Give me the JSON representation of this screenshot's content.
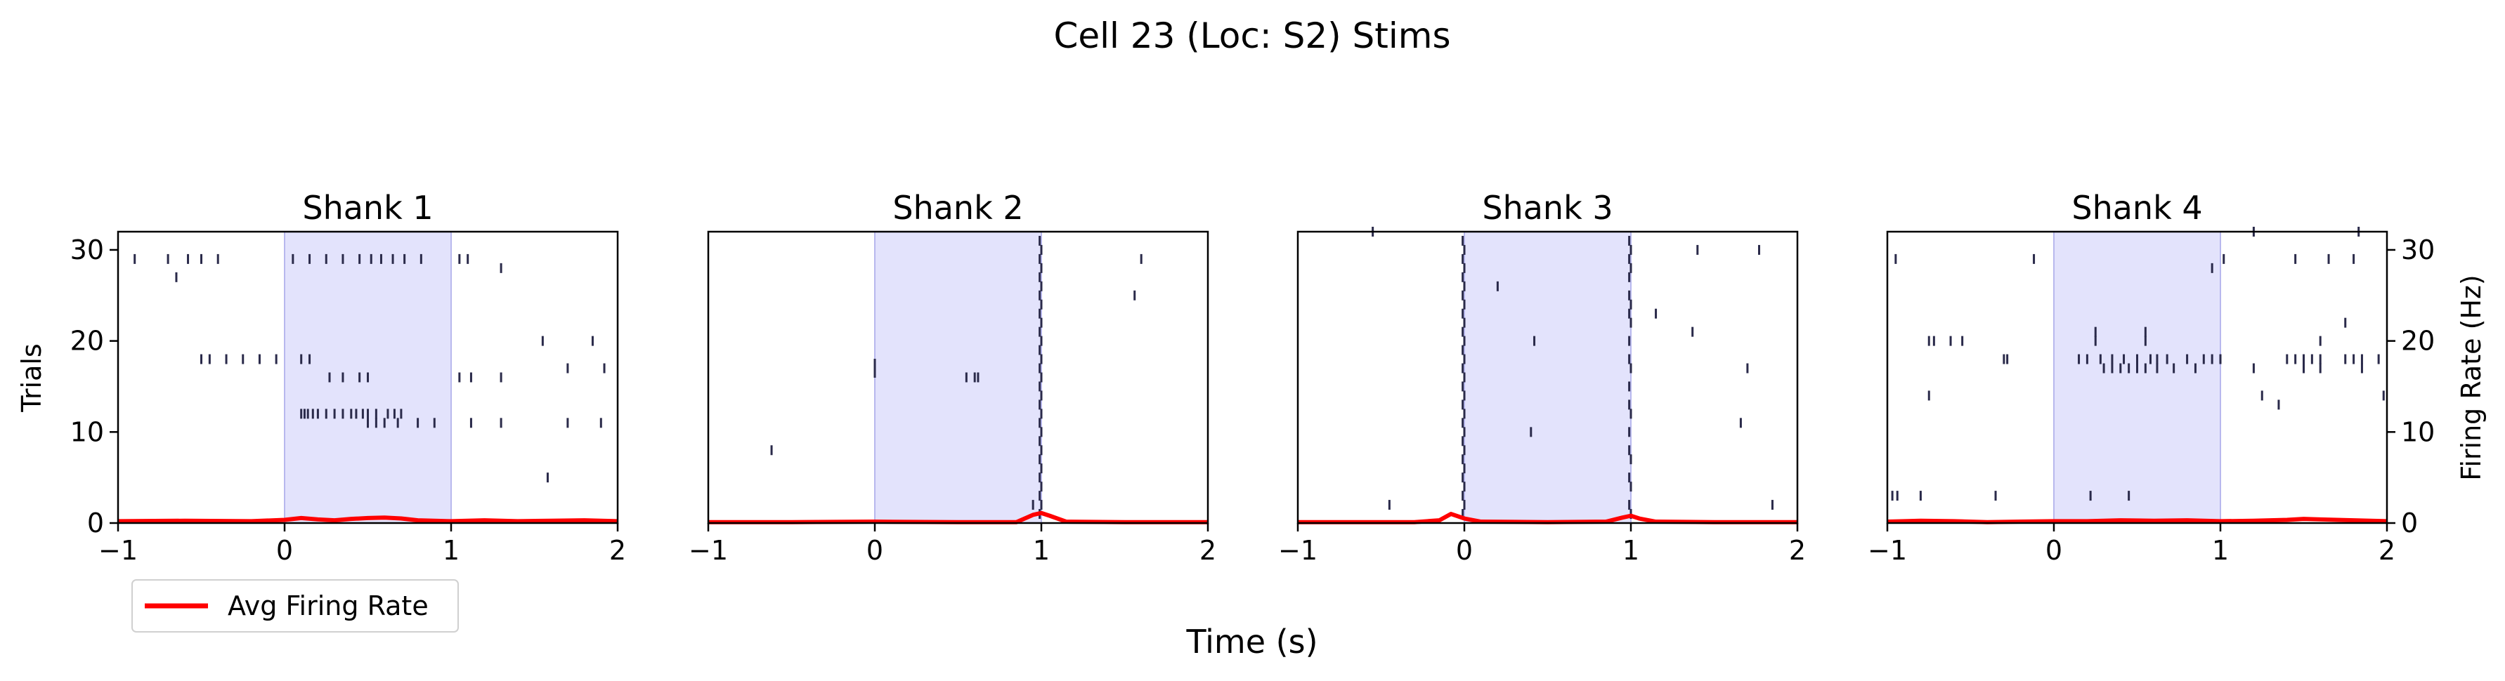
{
  "figure": {
    "title": "Cell 23 (Loc: S2) Stims",
    "xlabel": "Time (s)",
    "ylabel_left": "Trials",
    "ylabel_right": "Firing Rate (Hz)",
    "legend_label": "Avg Firing Rate"
  },
  "colors": {
    "spike": "#2a2a4a",
    "rate": "#ff0000",
    "stim": "#e3e3fc",
    "stim_edge": "#b8b8ee"
  },
  "chart_data": [
    {
      "type": "scatter",
      "title": "Shank 1",
      "xlim": [
        -1,
        2
      ],
      "ylim": [
        0,
        32
      ],
      "x_ticks": [
        "−1",
        "0",
        "1",
        "2"
      ],
      "y_ticks": [
        "0",
        "10",
        "20",
        "30"
      ],
      "stim_window": [
        0,
        1
      ],
      "spikes": [
        [
          -0.9,
          29
        ],
        [
          -0.7,
          29
        ],
        [
          -0.65,
          27
        ],
        [
          -0.58,
          29
        ],
        [
          -0.5,
          29
        ],
        [
          -0.4,
          29
        ],
        [
          0.05,
          29
        ],
        [
          0.15,
          29
        ],
        [
          0.25,
          29
        ],
        [
          0.35,
          29
        ],
        [
          0.45,
          29
        ],
        [
          0.52,
          29
        ],
        [
          0.58,
          29
        ],
        [
          0.65,
          29
        ],
        [
          0.72,
          29
        ],
        [
          0.82,
          29
        ],
        [
          1.05,
          29
        ],
        [
          1.1,
          29
        ],
        [
          1.3,
          28
        ],
        [
          -0.5,
          18
        ],
        [
          -0.45,
          18
        ],
        [
          -0.35,
          18
        ],
        [
          -0.25,
          18
        ],
        [
          -0.15,
          18
        ],
        [
          -0.05,
          18
        ],
        [
          0.1,
          18
        ],
        [
          0.15,
          18
        ],
        [
          0.27,
          16
        ],
        [
          0.35,
          16
        ],
        [
          0.45,
          16
        ],
        [
          0.5,
          16
        ],
        [
          1.05,
          16
        ],
        [
          1.12,
          16
        ],
        [
          1.3,
          16
        ],
        [
          0.1,
          12
        ],
        [
          0.12,
          12
        ],
        [
          0.14,
          12
        ],
        [
          0.17,
          12
        ],
        [
          0.2,
          12
        ],
        [
          0.25,
          12
        ],
        [
          0.3,
          12
        ],
        [
          0.35,
          12
        ],
        [
          0.4,
          12
        ],
        [
          0.43,
          12
        ],
        [
          0.47,
          12
        ],
        [
          0.5,
          12
        ],
        [
          0.55,
          12
        ],
        [
          0.62,
          12
        ],
        [
          0.66,
          12
        ],
        [
          0.7,
          12
        ],
        [
          0.5,
          11
        ],
        [
          0.55,
          11
        ],
        [
          0.6,
          11
        ],
        [
          0.68,
          11
        ],
        [
          0.8,
          11
        ],
        [
          0.9,
          11
        ],
        [
          1.12,
          11
        ],
        [
          1.3,
          11
        ],
        [
          1.55,
          20
        ],
        [
          1.85,
          20
        ],
        [
          1.7,
          17
        ],
        [
          1.92,
          17
        ],
        [
          1.7,
          11
        ],
        [
          1.9,
          11
        ],
        [
          1.58,
          5
        ]
      ],
      "rate": {
        "x": [
          -1,
          -0.6,
          -0.2,
          0,
          0.1,
          0.2,
          0.3,
          0.4,
          0.5,
          0.6,
          0.7,
          0.8,
          1,
          1.2,
          1.4,
          1.6,
          1.8,
          2
        ],
        "y": [
          0.2,
          0.25,
          0.2,
          0.35,
          0.55,
          0.4,
          0.3,
          0.45,
          0.55,
          0.6,
          0.5,
          0.3,
          0.2,
          0.3,
          0.2,
          0.25,
          0.3,
          0.2
        ]
      }
    },
    {
      "type": "scatter",
      "title": "Shank 2",
      "xlim": [
        -1,
        2
      ],
      "ylim": [
        0,
        32
      ],
      "x_ticks": [
        "−1",
        "0",
        "1",
        "2"
      ],
      "y_ticks": [],
      "stim_window": [
        0,
        1
      ],
      "spikes": [
        [
          1.6,
          29
        ],
        [
          1.56,
          25
        ],
        [
          0,
          17.5
        ],
        [
          0,
          16.5
        ],
        [
          0.55,
          16
        ],
        [
          0.6,
          16
        ],
        [
          0.62,
          16
        ],
        [
          -0.62,
          8
        ],
        [
          0.95,
          2
        ],
        [
          0.99,
          1
        ],
        [
          0.99,
          3
        ],
        [
          0.99,
          5
        ],
        [
          0.99,
          7
        ],
        [
          0.99,
          9
        ],
        [
          0.99,
          11
        ],
        [
          0.99,
          13
        ],
        [
          0.99,
          15
        ],
        [
          0.99,
          17
        ],
        [
          0.99,
          19
        ],
        [
          0.99,
          21
        ],
        [
          0.99,
          23
        ],
        [
          0.99,
          25
        ],
        [
          0.99,
          27
        ],
        [
          0.99,
          29
        ],
        [
          0.99,
          31
        ],
        [
          1,
          2
        ],
        [
          1,
          4
        ],
        [
          1,
          6
        ],
        [
          1,
          8
        ],
        [
          1,
          10
        ],
        [
          1,
          12
        ],
        [
          1,
          14
        ],
        [
          1,
          16
        ],
        [
          1,
          18
        ],
        [
          1,
          20
        ],
        [
          1,
          22
        ],
        [
          1,
          24
        ],
        [
          1,
          26
        ],
        [
          1,
          28
        ],
        [
          1,
          30
        ]
      ],
      "rate": {
        "x": [
          -1,
          -0.5,
          0,
          0.5,
          0.85,
          0.95,
          1,
          1.05,
          1.15,
          1.5,
          2
        ],
        "y": [
          0.1,
          0.1,
          0.15,
          0.1,
          0.1,
          0.9,
          1.1,
          0.8,
          0.15,
          0.1,
          0.1
        ]
      }
    },
    {
      "type": "scatter",
      "title": "Shank 3",
      "xlim": [
        -1,
        2
      ],
      "ylim": [
        0,
        32
      ],
      "x_ticks": [
        "−1",
        "0",
        "1",
        "2"
      ],
      "y_ticks": [],
      "stim_window": [
        0,
        1
      ],
      "spikes": [
        [
          1.4,
          30
        ],
        [
          1.77,
          30
        ],
        [
          0.2,
          26
        ],
        [
          1.15,
          23
        ],
        [
          1.37,
          21
        ],
        [
          0.42,
          20
        ],
        [
          1.7,
          17
        ],
        [
          1.66,
          11
        ],
        [
          0.4,
          10
        ],
        [
          -0.45,
          2
        ],
        [
          1.85,
          2
        ],
        [
          -0.55,
          32
        ],
        [
          -0.01,
          1
        ],
        [
          -0.01,
          3
        ],
        [
          -0.01,
          5
        ],
        [
          -0.01,
          7
        ],
        [
          -0.01,
          9
        ],
        [
          -0.01,
          11
        ],
        [
          -0.01,
          13
        ],
        [
          -0.01,
          15
        ],
        [
          -0.01,
          17
        ],
        [
          -0.01,
          19
        ],
        [
          -0.01,
          21
        ],
        [
          -0.01,
          23
        ],
        [
          -0.01,
          25
        ],
        [
          -0.01,
          27
        ],
        [
          -0.01,
          29
        ],
        [
          -0.01,
          31
        ],
        [
          0,
          2
        ],
        [
          0,
          4
        ],
        [
          0,
          6
        ],
        [
          0,
          8
        ],
        [
          0,
          10
        ],
        [
          0,
          12
        ],
        [
          0,
          14
        ],
        [
          0,
          16
        ],
        [
          0,
          18
        ],
        [
          0,
          20
        ],
        [
          0,
          22
        ],
        [
          0,
          24
        ],
        [
          0,
          26
        ],
        [
          0,
          28
        ],
        [
          0,
          30
        ],
        [
          0.99,
          2
        ],
        [
          0.99,
          5
        ],
        [
          0.99,
          8
        ],
        [
          0.99,
          10
        ],
        [
          0.99,
          13
        ],
        [
          0.99,
          15
        ],
        [
          0.99,
          18
        ],
        [
          0.99,
          20
        ],
        [
          0.99,
          23
        ],
        [
          0.99,
          25
        ],
        [
          0.99,
          27
        ],
        [
          0.99,
          29
        ],
        [
          0.99,
          31
        ],
        [
          1,
          1
        ],
        [
          1,
          4
        ],
        [
          1,
          7
        ],
        [
          1,
          12
        ],
        [
          1,
          17
        ],
        [
          1,
          22
        ],
        [
          1,
          24
        ],
        [
          1,
          28
        ],
        [
          1,
          30
        ]
      ],
      "rate": {
        "x": [
          -1,
          -0.3,
          -0.15,
          -0.08,
          0,
          0.1,
          0.5,
          0.85,
          0.95,
          1,
          1.05,
          1.15,
          1.5,
          2
        ],
        "y": [
          0.1,
          0.1,
          0.3,
          1.0,
          0.5,
          0.15,
          0.1,
          0.15,
          0.6,
          0.8,
          0.5,
          0.15,
          0.1,
          0.1
        ]
      }
    },
    {
      "type": "scatter",
      "title": "Shank 4",
      "xlim": [
        -1,
        2
      ],
      "ylim": [
        0,
        32
      ],
      "x_ticks": [
        "−1",
        "0",
        "1",
        "2"
      ],
      "y_ticks": [
        "0",
        "10",
        "20",
        "30"
      ],
      "stim_window": [
        0,
        1
      ],
      "spikes": [
        [
          -0.95,
          29
        ],
        [
          -0.12,
          29
        ],
        [
          0.95,
          28
        ],
        [
          1.02,
          29
        ],
        [
          1.2,
          32
        ],
        [
          1.45,
          29
        ],
        [
          1.65,
          29
        ],
        [
          1.8,
          29
        ],
        [
          1.83,
          32
        ],
        [
          1.75,
          22
        ],
        [
          0.25,
          21
        ],
        [
          0.55,
          21
        ],
        [
          -0.75,
          20
        ],
        [
          -0.72,
          20
        ],
        [
          -0.62,
          20
        ],
        [
          -0.55,
          20
        ],
        [
          0.25,
          20
        ],
        [
          0.55,
          20
        ],
        [
          1.6,
          20
        ],
        [
          -0.3,
          18
        ],
        [
          -0.28,
          18
        ],
        [
          0.15,
          18
        ],
        [
          0.2,
          18
        ],
        [
          0.28,
          18
        ],
        [
          0.35,
          18
        ],
        [
          0.42,
          18
        ],
        [
          0.5,
          18
        ],
        [
          0.58,
          18
        ],
        [
          0.62,
          18
        ],
        [
          0.68,
          18
        ],
        [
          0.8,
          18
        ],
        [
          0.9,
          18
        ],
        [
          0.95,
          18
        ],
        [
          1.0,
          18
        ],
        [
          1.4,
          18
        ],
        [
          1.45,
          18
        ],
        [
          1.5,
          18
        ],
        [
          1.55,
          18
        ],
        [
          1.6,
          18
        ],
        [
          1.75,
          18
        ],
        [
          1.8,
          18
        ],
        [
          1.85,
          18
        ],
        [
          1.95,
          18
        ],
        [
          0.3,
          17
        ],
        [
          0.35,
          17
        ],
        [
          0.4,
          17
        ],
        [
          0.45,
          17
        ],
        [
          0.5,
          17
        ],
        [
          0.55,
          17
        ],
        [
          0.62,
          17
        ],
        [
          0.72,
          17
        ],
        [
          0.85,
          17
        ],
        [
          1.2,
          17
        ],
        [
          1.5,
          17
        ],
        [
          1.6,
          17
        ],
        [
          1.85,
          17
        ],
        [
          -0.75,
          14
        ],
        [
          1.25,
          14
        ],
        [
          1.98,
          14
        ],
        [
          1.35,
          13
        ],
        [
          -0.97,
          3
        ],
        [
          -0.94,
          3
        ],
        [
          -0.8,
          3
        ],
        [
          -0.35,
          3
        ],
        [
          0.22,
          3
        ],
        [
          0.45,
          3
        ]
      ],
      "rate": {
        "x": [
          -1,
          -0.8,
          -0.6,
          -0.4,
          -0.2,
          0,
          0.2,
          0.4,
          0.6,
          0.8,
          1,
          1.2,
          1.4,
          1.5,
          1.6,
          1.8,
          2
        ],
        "y": [
          0.15,
          0.25,
          0.2,
          0.1,
          0.15,
          0.2,
          0.2,
          0.3,
          0.25,
          0.3,
          0.2,
          0.25,
          0.35,
          0.45,
          0.4,
          0.3,
          0.2
        ]
      }
    }
  ]
}
